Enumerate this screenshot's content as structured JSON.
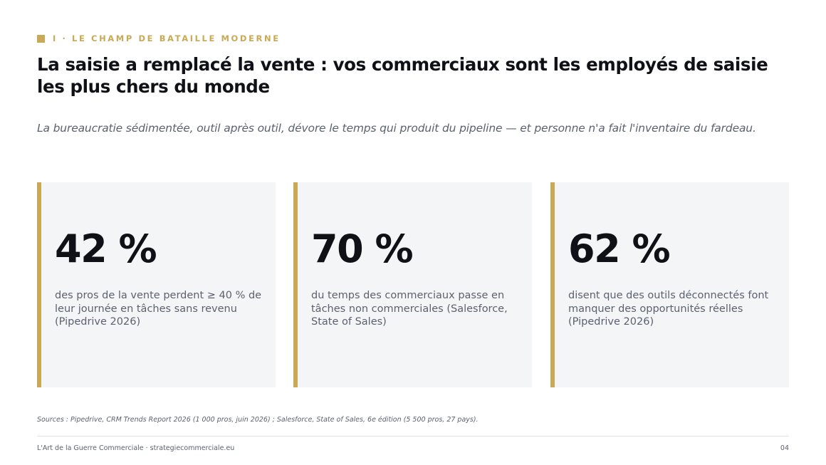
{
  "section": {
    "label": "I · LE CHAMP DE BATAILLE MODERNE"
  },
  "title": "La saisie a remplacé la vente : vos commerciaux sont les employés de saisie les plus chers du monde",
  "subtitle": "La bureaucratie sédimentée, outil après outil, dévore le temps qui produit du pipeline — et personne n'a fait l'inventaire du fardeau.",
  "stats": [
    {
      "value": "42 %",
      "description": "des pros de la vente perdent ≥ 40 % de leur journée en tâches sans revenu (Pipedrive 2026)"
    },
    {
      "value": "70 %",
      "description": "du temps des commerciaux passe en tâches non commerciales (Salesforce, State of Sales)"
    },
    {
      "value": "62 %",
      "description": "disent que des outils déconnectés font manquer des opportunités réelles (Pipedrive 2026)"
    }
  ],
  "sources": "Sources : Pipedrive, CRM Trends Report 2026 (1 000 pros, juin 2026) ; Salesforce, State of Sales, 6e édition (5 500 pros, 27 pays).",
  "footer": {
    "left": "L'Art de la Guerre Commerciale · strategiecommerciale.eu",
    "page": "04"
  },
  "colors": {
    "accent": "#c9a955",
    "text": "#0f1117",
    "muted": "#5a6170",
    "card": "#f4f5f7"
  }
}
